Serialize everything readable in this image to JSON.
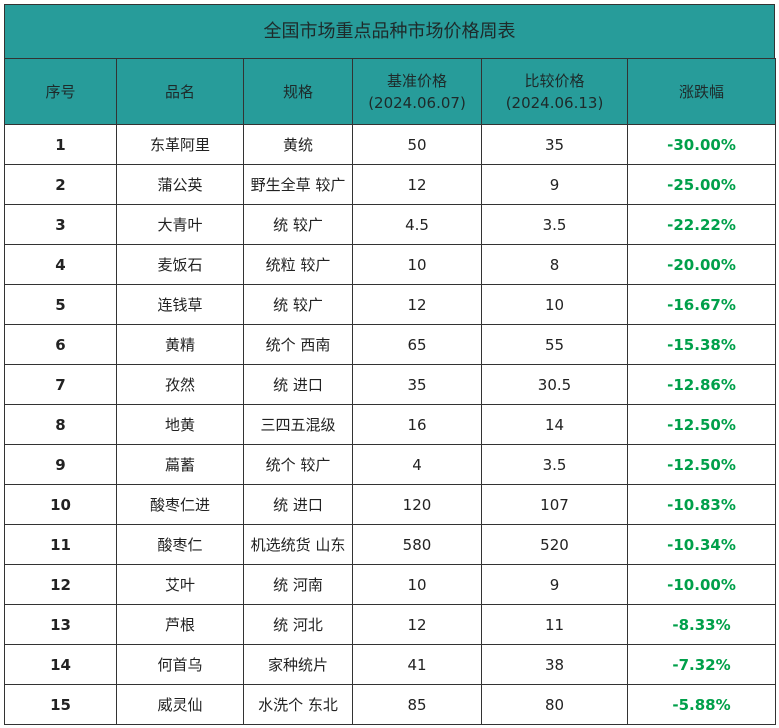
{
  "title": "全国市场重点品种市场价格周表",
  "table": {
    "header": [
      [
        "序号"
      ],
      [
        "品名"
      ],
      [
        "规格"
      ],
      [
        "基准价格",
        "(2024.06.07)"
      ],
      [
        "比较价格",
        "(2024.06.13)"
      ],
      [
        "涨跌幅"
      ]
    ],
    "rows": [
      [
        "1",
        "东革阿里",
        "黄统",
        "50",
        "35",
        "-30.00%"
      ],
      [
        "2",
        "蒲公英",
        "野生全草 较广",
        "12",
        "9",
        "-25.00%"
      ],
      [
        "3",
        "大青叶",
        "统 较广",
        "4.5",
        "3.5",
        "-22.22%"
      ],
      [
        "4",
        "麦饭石",
        "统粒 较广",
        "10",
        "8",
        "-20.00%"
      ],
      [
        "5",
        "连钱草",
        "统 较广",
        "12",
        "10",
        "-16.67%"
      ],
      [
        "6",
        "黄精",
        "统个 西南",
        "65",
        "55",
        "-15.38%"
      ],
      [
        "7",
        "孜然",
        "统 进口",
        "35",
        "30.5",
        "-12.86%"
      ],
      [
        "8",
        "地黄",
        "三四五混级",
        "16",
        "14",
        "-12.50%"
      ],
      [
        "9",
        "萹蓄",
        "统个 较广",
        "4",
        "3.5",
        "-12.50%"
      ],
      [
        "10",
        "酸枣仁进",
        "统 进口",
        "120",
        "107",
        "-10.83%"
      ],
      [
        "11",
        "酸枣仁",
        "机选统货 山东",
        "580",
        "520",
        "-10.34%"
      ],
      [
        "12",
        "艾叶",
        "统 河南",
        "10",
        "9",
        "-10.00%"
      ],
      [
        "13",
        "芦根",
        "统 河北",
        "12",
        "11",
        "-8.33%"
      ],
      [
        "14",
        "何首乌",
        "家种统片",
        "41",
        "38",
        "-7.32%"
      ],
      [
        "15",
        "威灵仙",
        "水洗个 东北",
        "85",
        "80",
        "-5.88%"
      ]
    ]
  }
}
